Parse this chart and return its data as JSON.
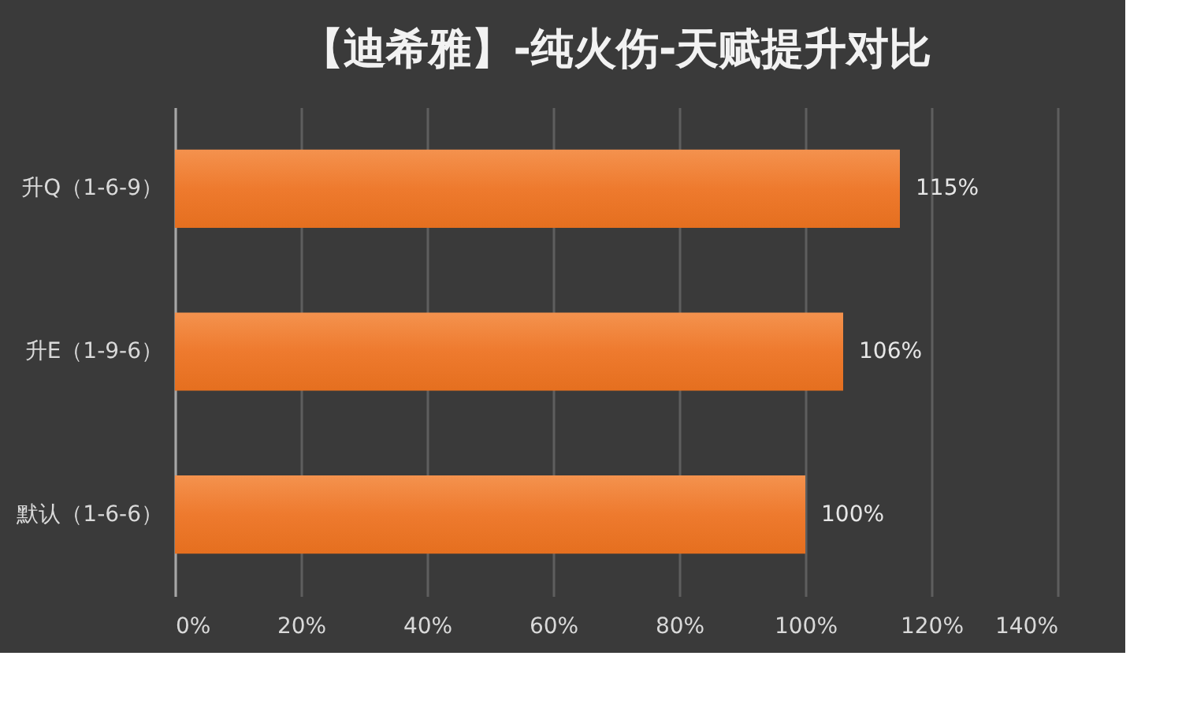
{
  "chart_data": {
    "type": "bar",
    "orientation": "horizontal",
    "title": "【迪希雅】-纯火伤-天赋提升对比",
    "categories": [
      "升Q（1-6-9）",
      "升E（1-9-6）",
      "默认（1-6-6）"
    ],
    "values": [
      115,
      106,
      100
    ],
    "color": "#ee7a2e",
    "value_labels": [
      "115%",
      "106%",
      "100%"
    ],
    "xlim": [
      0,
      140
    ],
    "xticks": [
      {
        "value": 0,
        "label": "0%"
      },
      {
        "value": 20,
        "label": "20%"
      },
      {
        "value": 40,
        "label": "40%"
      },
      {
        "value": 60,
        "label": "60%"
      },
      {
        "value": 80,
        "label": "80%"
      },
      {
        "value": 100,
        "label": "100%"
      },
      {
        "value": 120,
        "label": "120%"
      },
      {
        "value": 140,
        "label": "140%"
      }
    ],
    "grid": "x"
  }
}
